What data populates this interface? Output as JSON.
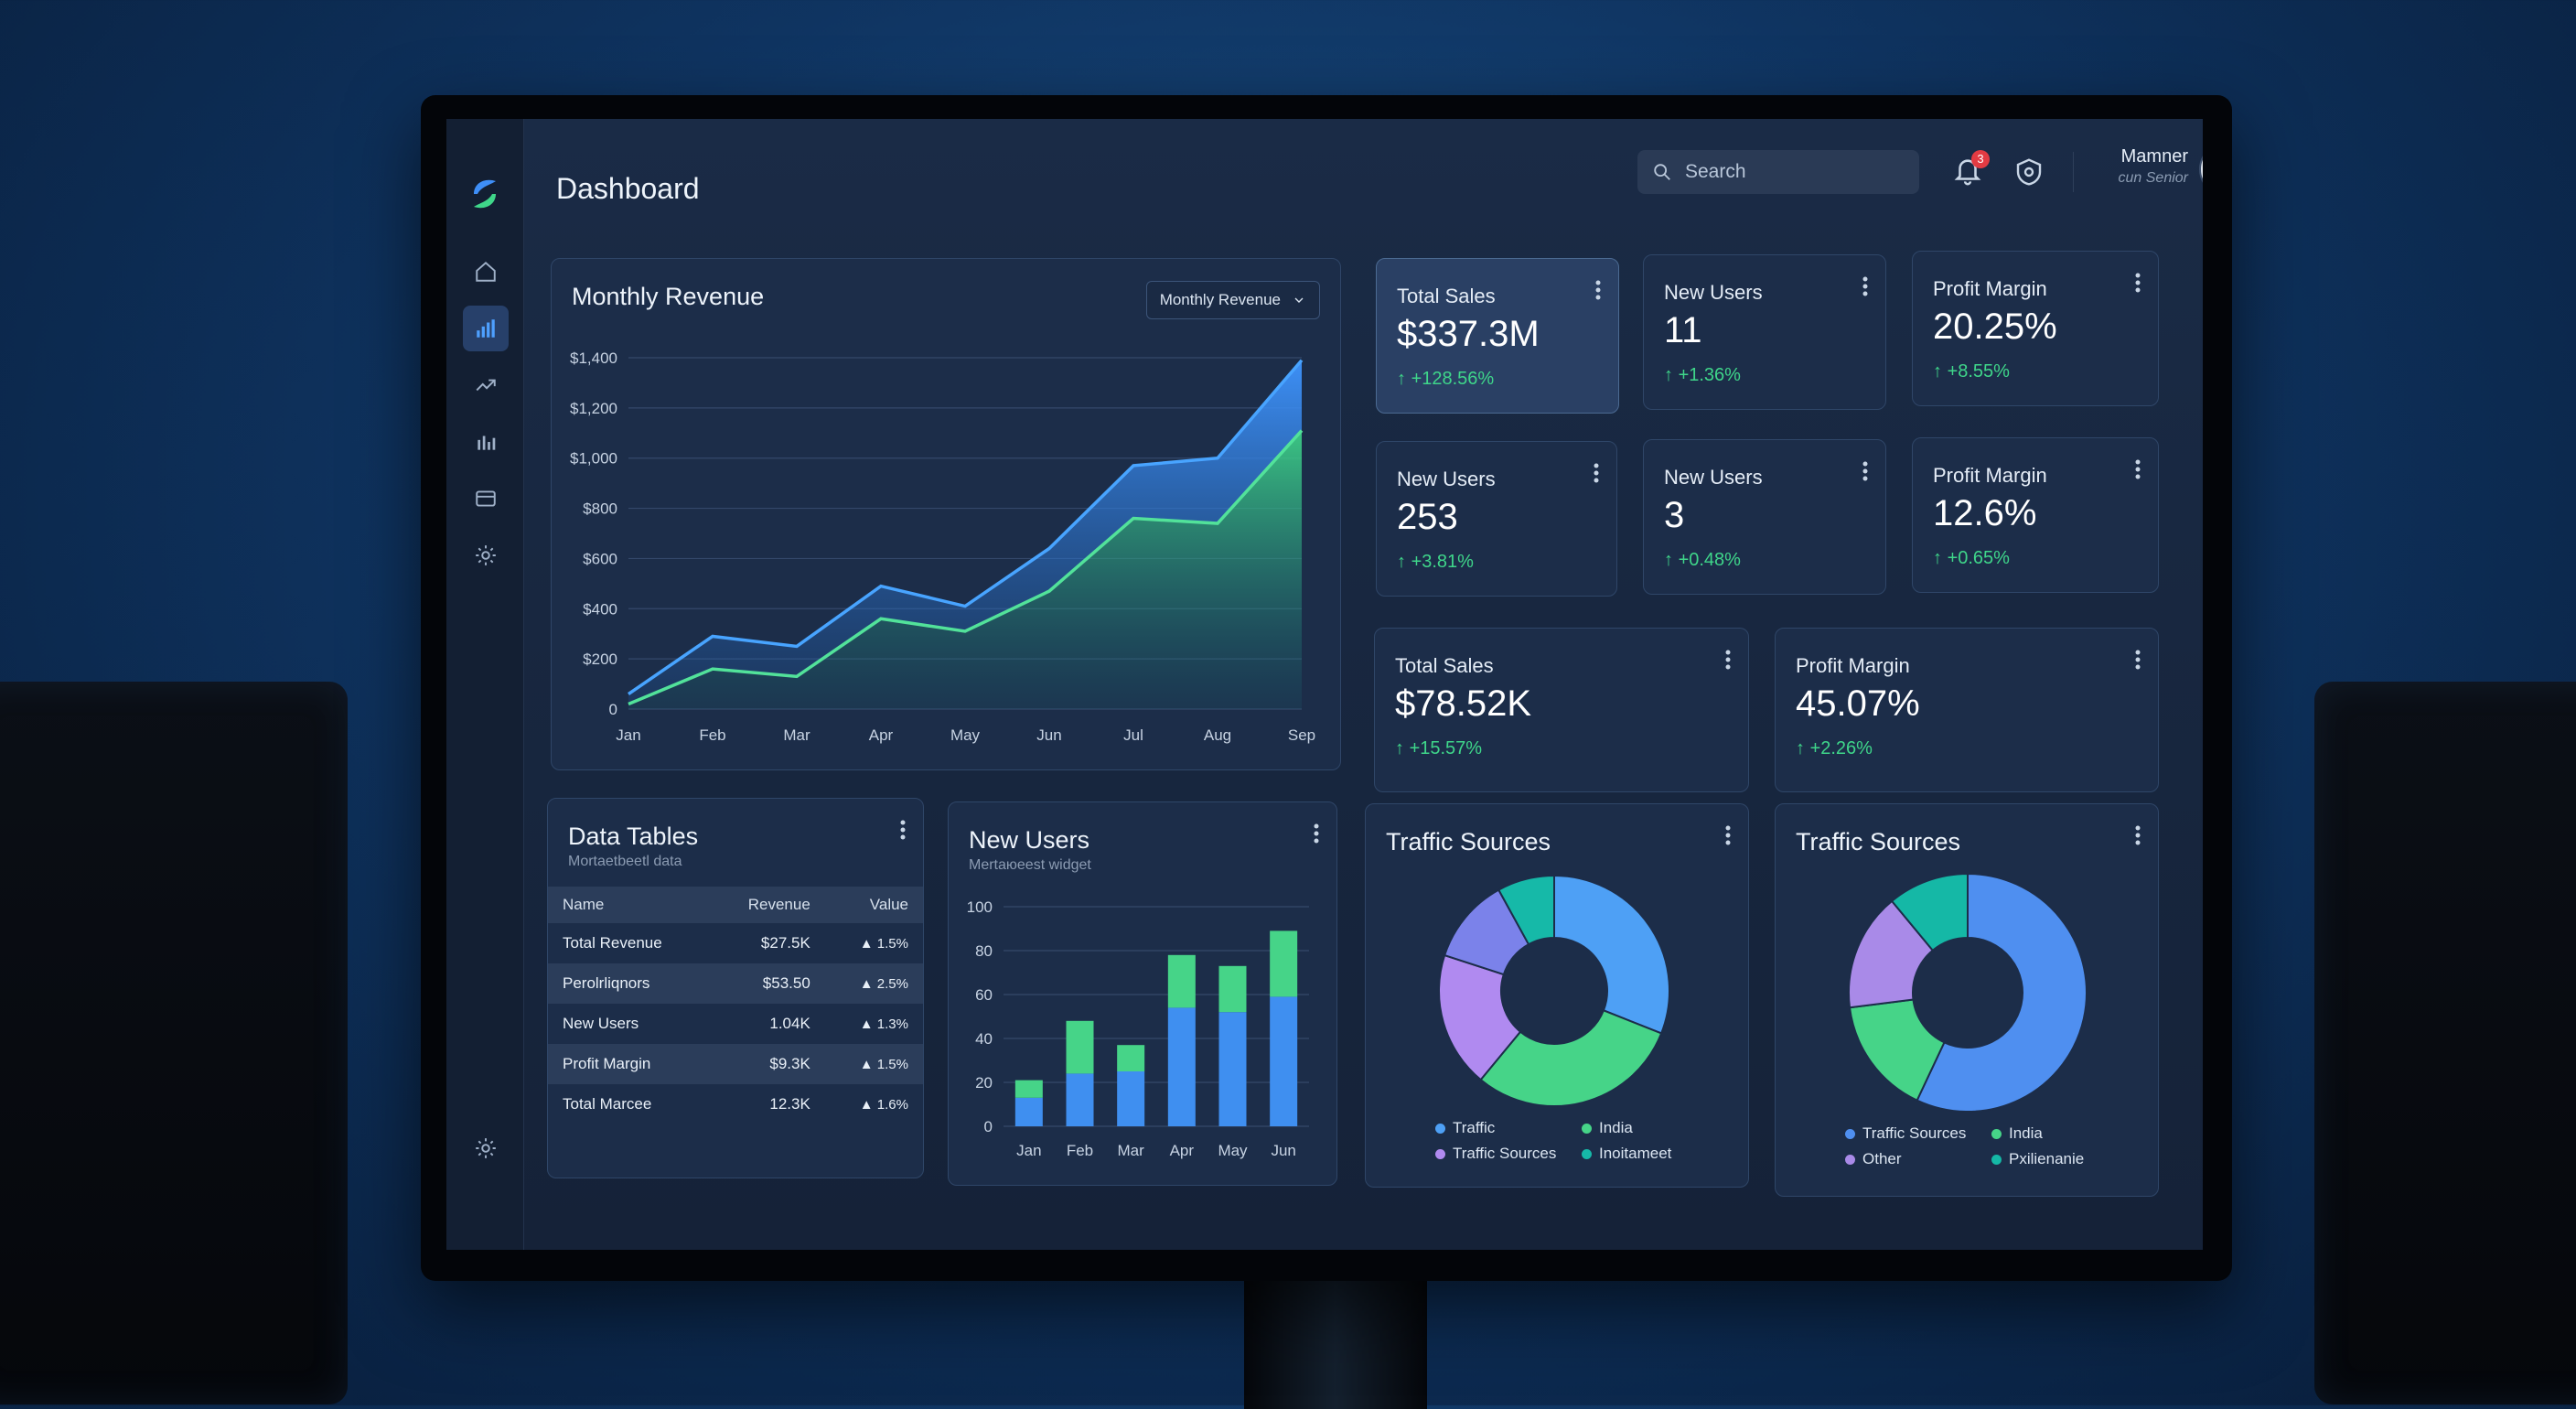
{
  "app": {
    "title": "Dashboard"
  },
  "search": {
    "placeholder": "Search"
  },
  "notifications": {
    "count": "3"
  },
  "user": {
    "name": "Mamner",
    "role": "cun Senior"
  },
  "sidebar": {
    "items": [
      "home",
      "analytics",
      "trends",
      "reports",
      "billing",
      "settings"
    ],
    "active": "analytics",
    "bottom": "settings"
  },
  "revenue": {
    "title": "Monthly Revenue",
    "select_label": "Monthly Revenue",
    "chart_data": {
      "type": "area",
      "categories": [
        "Jan",
        "Feb",
        "Mar",
        "Apr",
        "May",
        "Jun",
        "Jul",
        "Aug",
        "Sep"
      ],
      "series": [
        {
          "values": [
            60,
            290,
            250,
            490,
            410,
            640,
            970,
            1000,
            1390
          ]
        },
        {
          "values": [
            20,
            160,
            130,
            360,
            310,
            470,
            760,
            740,
            1110
          ]
        }
      ],
      "ylim": [
        0,
        1400
      ],
      "yticks": [
        "$1,400",
        "$1,200",
        "$1,000",
        "$800",
        "$600",
        "$400",
        "$200",
        "0"
      ],
      "grid": true
    }
  },
  "metrics": [
    {
      "label": "Total Sales",
      "value": "$337.3M",
      "delta": "+128.56%"
    },
    {
      "label": "New Users",
      "value": "11",
      "delta": "+1.36%"
    },
    {
      "label": "Profit Margin",
      "value": "20.25%",
      "delta": "+8.55%"
    },
    {
      "label": "New Users",
      "value": "253",
      "delta": "+3.81%"
    },
    {
      "label": "New Users",
      "value": "3",
      "delta": "+0.48%"
    },
    {
      "label": "Profit Margin",
      "value": "12.6%",
      "delta": "+0.65%"
    },
    {
      "label": "Total Sales",
      "value": "$78.52K",
      "delta": "+15.57%"
    },
    {
      "label": "Profit Margin",
      "value": "45.07%",
      "delta": "+2.26%"
    }
  ],
  "table": {
    "title": "Data Tables",
    "subtitle": "Mortaetbeetl data",
    "headers": [
      "Name",
      "Revenue",
      "Value"
    ],
    "rows": [
      [
        "Total Revenue",
        "$27.5K",
        "1.5%"
      ],
      [
        "Perolrliqnors",
        "$53.50",
        "2.5%"
      ],
      [
        "New Users",
        "1.04K",
        "1.3%"
      ],
      [
        "Profit Margin",
        "$9.3K",
        "1.5%"
      ],
      [
        "Total Marcee",
        "12.3K",
        "1.6%"
      ]
    ]
  },
  "newusers": {
    "title": "New Users",
    "subtitle": "Mertaюeest widget",
    "chart_data": {
      "type": "bar",
      "categories": [
        "Jan",
        "Feb",
        "Mar",
        "Apr",
        "May",
        "Jun"
      ],
      "series": [
        {
          "values": [
            13,
            24,
            25,
            54,
            52,
            59
          ]
        },
        {
          "values": [
            8,
            24,
            12,
            24,
            21,
            30
          ]
        }
      ],
      "stacked": true,
      "ylim": [
        0,
        100
      ],
      "yticks": [
        "100",
        "80",
        "60",
        "40",
        "20",
        "0"
      ]
    }
  },
  "traffic1": {
    "title": "Traffic Sources",
    "chart_data": {
      "type": "pie",
      "slices": [
        {
          "name": "Traffic",
          "value": 31,
          "color": "#4ea0f5"
        },
        {
          "name": "India",
          "value": 30,
          "color": "#46d488"
        },
        {
          "name": "Traffic Sources",
          "value": 19,
          "color": "#b08af0"
        },
        {
          "name": "",
          "value": 12,
          "color": "#7b82ea"
        },
        {
          "name": "Inoitameet",
          "value": 8,
          "color": "#16b9a8"
        }
      ],
      "legend": [
        "Traffic",
        "India",
        "Traffic Sources",
        "Inoitameet"
      ]
    }
  },
  "traffic2": {
    "title": "Traffic Sources",
    "chart_data": {
      "type": "pie",
      "slices": [
        {
          "name": "Traffic Sources",
          "value": 57,
          "color": "#4f8ff0"
        },
        {
          "name": "India",
          "value": 16,
          "color": "#46d488"
        },
        {
          "name": "Other",
          "value": 16,
          "color": "#a98ae8"
        },
        {
          "name": "Pxilienanie",
          "value": 11,
          "color": "#15b8a6"
        }
      ],
      "legend": [
        "Traffic Sources",
        "India",
        "Other",
        "Pxilienanie"
      ]
    }
  },
  "colors": {
    "blue": "#3f95ff",
    "green": "#3fd68a",
    "panel": "#1c2d49",
    "highlight": "#2a4064"
  }
}
